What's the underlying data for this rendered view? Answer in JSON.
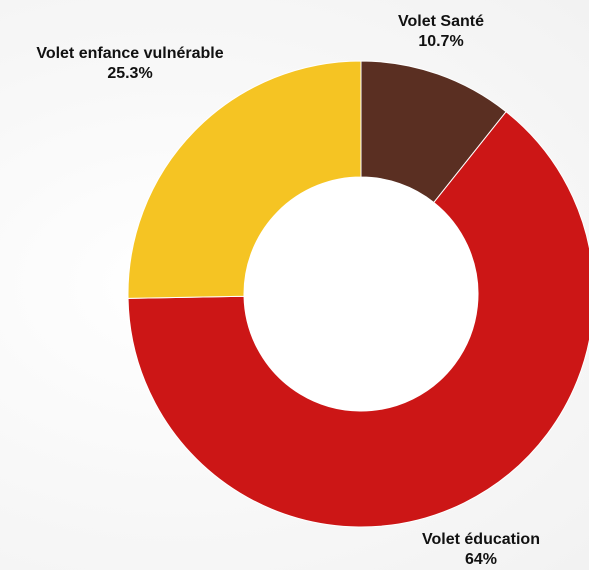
{
  "chart_data": {
    "type": "pie",
    "donut": true,
    "slices": [
      {
        "label": "Volet Santé",
        "value": 10.7,
        "value_label": "10.7%",
        "color": "#5a2f22"
      },
      {
        "label": "Volet éducation",
        "value": 64,
        "value_label": "64%",
        "color": "#cc1616"
      },
      {
        "label": "Volet enfance vulnérable",
        "value": 25.3,
        "value_label": "25.3%",
        "color": "#f5c423"
      }
    ]
  }
}
